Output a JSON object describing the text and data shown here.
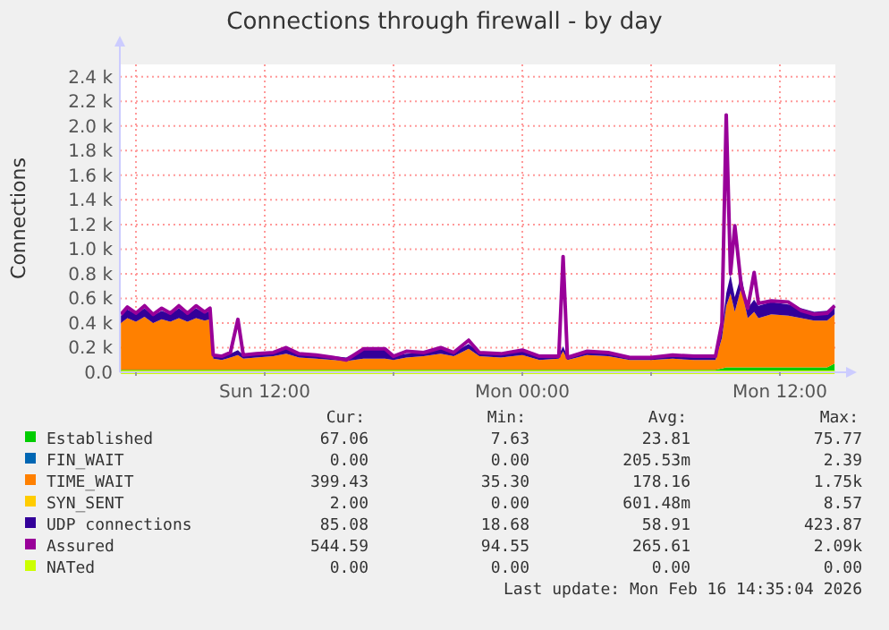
{
  "chart_data": {
    "type": "area",
    "stacked": true,
    "title": "Connections through firewall - by day",
    "ylabel": "Connections",
    "x": [
      "2026-02-15T05:18",
      "2026-02-15T05:36",
      "2026-02-15T06:00",
      "2026-02-15T06:24",
      "2026-02-15T06:48",
      "2026-02-15T07:12",
      "2026-02-15T07:36",
      "2026-02-15T08:00",
      "2026-02-15T08:24",
      "2026-02-15T08:48",
      "2026-02-15T09:12",
      "2026-02-15T09:27",
      "2026-02-15T09:36",
      "2026-02-15T10:00",
      "2026-02-15T10:24",
      "2026-02-15T10:45",
      "2026-02-15T11:00",
      "2026-02-15T11:36",
      "2026-02-15T12:24",
      "2026-02-15T13:00",
      "2026-02-15T13:36",
      "2026-02-15T14:24",
      "2026-02-15T15:12",
      "2026-02-15T15:48",
      "2026-02-15T16:36",
      "2026-02-15T17:36",
      "2026-02-15T18:00",
      "2026-02-15T18:36",
      "2026-02-15T19:24",
      "2026-02-15T20:12",
      "2026-02-15T20:48",
      "2026-02-15T21:30",
      "2026-02-15T22:00",
      "2026-02-15T23:00",
      "2026-02-16T00:00",
      "2026-02-16T00:48",
      "2026-02-16T01:42",
      "2026-02-16T01:54",
      "2026-02-16T02:06",
      "2026-02-16T03:00",
      "2026-02-16T04:00",
      "2026-02-16T05:00",
      "2026-02-16T06:00",
      "2026-02-16T07:00",
      "2026-02-16T08:00",
      "2026-02-16T09:00",
      "2026-02-16T09:18",
      "2026-02-16T09:30",
      "2026-02-16T09:42",
      "2026-02-16T09:54",
      "2026-02-16T10:12",
      "2026-02-16T10:30",
      "2026-02-16T10:48",
      "2026-02-16T11:00",
      "2026-02-16T11:36",
      "2026-02-16T12:24",
      "2026-02-16T13:00",
      "2026-02-16T13:36",
      "2026-02-16T14:12",
      "2026-02-16T14:33"
    ],
    "xlim": [
      "2026-02-15T05:15",
      "2026-02-16T14:35"
    ],
    "xticks": [
      {
        "value": "2026-02-15T06:00",
        "label": null
      },
      {
        "value": "2026-02-15T12:00",
        "label": "Sun 12:00"
      },
      {
        "value": "2026-02-15T18:00",
        "label": null
      },
      {
        "value": "2026-02-16T00:00",
        "label": "Mon 00:00"
      },
      {
        "value": "2026-02-16T06:00",
        "label": null
      },
      {
        "value": "2026-02-16T12:00",
        "label": "Mon 12:00"
      }
    ],
    "ylim": [
      0,
      2500
    ],
    "yticks": [
      {
        "value": 0,
        "label": "0.0"
      },
      {
        "value": 200,
        "label": "0.2 k"
      },
      {
        "value": 400,
        "label": "0.4 k"
      },
      {
        "value": 600,
        "label": "0.6 k"
      },
      {
        "value": 800,
        "label": "0.8 k"
      },
      {
        "value": 1000,
        "label": "1.0 k"
      },
      {
        "value": 1200,
        "label": "1.2 k"
      },
      {
        "value": 1400,
        "label": "1.4 k"
      },
      {
        "value": 1600,
        "label": "1.6 k"
      },
      {
        "value": 1800,
        "label": "1.8 k"
      },
      {
        "value": 2000,
        "label": "2.0 k"
      },
      {
        "value": 2200,
        "label": "2.2 k"
      },
      {
        "value": 2400,
        "label": "2.4 k"
      }
    ],
    "grid": true,
    "legend": "bottom",
    "series": [
      {
        "name": "Established",
        "color": "#00cc00",
        "values": [
          20,
          20,
          20,
          20,
          20,
          20,
          20,
          20,
          20,
          20,
          20,
          20,
          20,
          20,
          20,
          20,
          20,
          20,
          20,
          20,
          20,
          20,
          20,
          20,
          20,
          20,
          20,
          20,
          20,
          20,
          20,
          20,
          20,
          20,
          20,
          20,
          20,
          20,
          20,
          20,
          20,
          20,
          20,
          20,
          20,
          20,
          30,
          40,
          40,
          40,
          40,
          40,
          40,
          40,
          40,
          40,
          40,
          40,
          40,
          70
        ]
      },
      {
        "name": "FIN_WAIT",
        "color": "#0066b3",
        "values": [
          null,
          null,
          null,
          null,
          null,
          null,
          null,
          null,
          null,
          null,
          null,
          null,
          null,
          null,
          null,
          null,
          null,
          null,
          null,
          null,
          null,
          null,
          null,
          null,
          null,
          null,
          null,
          null,
          null,
          null,
          null,
          null,
          null,
          null,
          null,
          null,
          null,
          null,
          null,
          null,
          null,
          null,
          null,
          null,
          null,
          null,
          null,
          null,
          null,
          null,
          null,
          null,
          null,
          null,
          null,
          null,
          null,
          null,
          null,
          null
        ]
      },
      {
        "name": "TIME_WAIT",
        "color": "#ff8000",
        "values": [
          380,
          420,
          390,
          430,
          380,
          410,
          390,
          420,
          390,
          420,
          400,
          410,
          90,
          80,
          100,
          120,
          90,
          100,
          110,
          130,
          100,
          90,
          80,
          70,
          90,
          90,
          80,
          100,
          110,
          130,
          110,
          170,
          110,
          100,
          120,
          80,
          90,
          150,
          80,
          120,
          110,
          80,
          80,
          90,
          80,
          80,
          250,
          500,
          600,
          450,
          650,
          400,
          450,
          400,
          430,
          420,
          400,
          380,
          380,
          400
        ]
      },
      {
        "name": "SYN_SENT",
        "color": "#ffcc00",
        "values": [
          null,
          null,
          null,
          null,
          null,
          null,
          null,
          null,
          null,
          null,
          null,
          null,
          null,
          null,
          null,
          null,
          null,
          null,
          null,
          null,
          null,
          null,
          null,
          null,
          null,
          null,
          null,
          null,
          null,
          null,
          null,
          null,
          null,
          null,
          null,
          null,
          null,
          null,
          null,
          null,
          null,
          null,
          null,
          null,
          null,
          null,
          null,
          null,
          null,
          null,
          null,
          null,
          null,
          null,
          null,
          null,
          null,
          null,
          null,
          null
        ]
      },
      {
        "name": "UDP connections",
        "color": "#330099",
        "values": [
          60,
          70,
          60,
          70,
          60,
          70,
          60,
          80,
          60,
          80,
          60,
          70,
          30,
          30,
          30,
          40,
          30,
          30,
          30,
          40,
          30,
          30,
          30,
          30,
          80,
          80,
          30,
          30,
          30,
          40,
          30,
          40,
          30,
          30,
          30,
          30,
          30,
          40,
          30,
          30,
          30,
          30,
          30,
          30,
          30,
          30,
          60,
          100,
          150,
          120,
          100,
          80,
          100,
          100,
          100,
          90,
          80,
          70,
          80,
          80
        ]
      },
      {
        "name": "Assured",
        "color": "#990099",
        "type": "line",
        "values": [
          470,
          530,
          480,
          540,
          470,
          520,
          480,
          540,
          480,
          540,
          490,
          520,
          140,
          130,
          160,
          430,
          140,
          150,
          160,
          200,
          150,
          140,
          120,
          100,
          190,
          190,
          130,
          170,
          160,
          200,
          160,
          260,
          160,
          150,
          180,
          130,
          130,
          940,
          120,
          170,
          160,
          120,
          120,
          140,
          130,
          130,
          400,
          2090,
          800,
          1190,
          700,
          520,
          810,
          560,
          580,
          570,
          500,
          470,
          480,
          540
        ]
      },
      {
        "name": "NATed",
        "color": "#ccff00",
        "type": "line",
        "values": [
          0,
          0,
          0,
          0,
          0,
          0,
          0,
          0,
          0,
          0,
          0,
          0,
          0,
          0,
          0,
          0,
          0,
          0,
          0,
          0,
          0,
          0,
          0,
          0,
          0,
          0,
          0,
          0,
          0,
          0,
          0,
          0,
          0,
          0,
          0,
          0,
          0,
          0,
          0,
          0,
          0,
          0,
          0,
          0,
          0,
          0,
          0,
          0,
          0,
          0,
          0,
          0,
          0,
          0,
          0,
          0,
          0,
          0,
          0,
          0
        ]
      }
    ],
    "annotations": [
      "Cur:",
      "Min:",
      "Avg:",
      "Max:",
      "67.06",
      "7.63",
      "23.81",
      "75.77",
      "0.00",
      "0.00",
      "205.53m",
      "2.39",
      "399.43",
      "35.30",
      "178.16",
      "1.75k",
      "2.00",
      "0.00",
      "601.48m",
      "8.57",
      "85.08",
      "18.68",
      "58.91",
      "423.87",
      "544.59",
      "94.55",
      "265.61",
      "2.09k",
      "0.00",
      "0.00",
      "0.00",
      "0.00",
      "Last update: Mon Feb 16 14:35:04 2026"
    ]
  }
}
